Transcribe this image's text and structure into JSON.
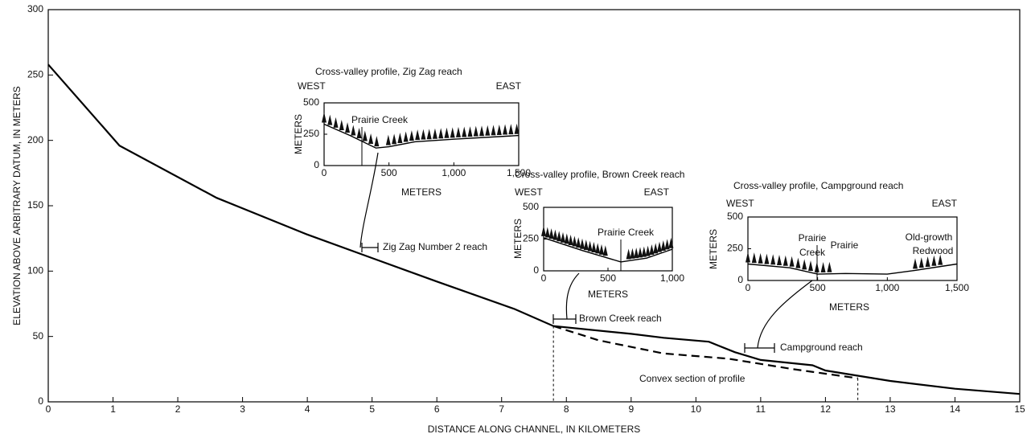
{
  "chart_data": [
    {
      "type": "line",
      "xlabel": "DISTANCE ALONG CHANNEL, IN KILOMETERS",
      "ylabel": "ELEVATION ABOVE ARBITRARY DATUM, IN METERS",
      "xlim": [
        0,
        15
      ],
      "xticks": [
        0,
        1,
        2,
        3,
        4,
        5,
        6,
        7,
        8,
        9,
        10,
        11,
        12,
        13,
        14,
        15
      ],
      "ylim": [
        0,
        300
      ],
      "yticks": [
        0,
        50,
        100,
        150,
        200,
        250,
        300
      ],
      "series": [
        {
          "color": "#000000",
          "line_style": "solid",
          "x": [
            0,
            1.1,
            2.6,
            4,
            5,
            6,
            7.2,
            7.8,
            9,
            9.5,
            10.2,
            10.6,
            11,
            11.8,
            12,
            13,
            14,
            15
          ],
          "values": [
            258,
            196,
            156,
            128,
            110,
            92,
            71,
            58,
            52,
            49,
            46,
            38,
            32,
            28,
            24,
            16,
            10,
            6
          ]
        },
        {
          "color": "#000000",
          "line_style": "dashed",
          "x": [
            7.8,
            8.5,
            9.5,
            10.5,
            11.5,
            12.5
          ],
          "values": [
            58,
            47,
            37,
            33,
            25,
            18
          ]
        }
      ],
      "annotations": [
        "Zig Zag Number 2 reach",
        "Brown Creek reach",
        "Campground reach",
        "Convex section of profile"
      ]
    },
    {
      "type": "line",
      "title": "Cross-valley profile, Zig Zag reach",
      "west": "WEST",
      "east": "EAST",
      "xlabel": "METERS",
      "ylabel": "METERS",
      "xlim": [
        0,
        1500
      ],
      "xticks": [
        0,
        500,
        {
          "value": 1000,
          "label": "1,000"
        },
        {
          "value": 1500,
          "label": "1,500"
        }
      ],
      "ylim": [
        0,
        500
      ],
      "yticks": [
        0,
        250,
        500
      ],
      "series": [
        {
          "color": "#000000",
          "x": [
            0,
            200,
            400,
            500,
            700,
            1000,
            1500
          ],
          "values": [
            330,
            240,
            140,
            150,
            190,
            210,
            240
          ]
        }
      ],
      "labels": [
        "Prairie Creek"
      ]
    },
    {
      "type": "line",
      "title": "Cross-valley profile, Brown Creek reach",
      "west": "WEST",
      "east": "EAST",
      "xlabel": "METERS",
      "ylabel": "METERS",
      "xlim": [
        0,
        1000
      ],
      "xticks": [
        0,
        500,
        {
          "value": 1000,
          "label": "1,000"
        }
      ],
      "ylim": [
        0,
        500
      ],
      "yticks": [
        0,
        250,
        500
      ],
      "series": [
        {
          "color": "#000000",
          "x": [
            0,
            300,
            600,
            800,
            1000
          ],
          "values": [
            260,
            160,
            70,
            100,
            170
          ]
        }
      ],
      "labels": [
        "Prairie Creek"
      ]
    },
    {
      "type": "line",
      "title": "Cross-valley profile, Campground reach",
      "west": "WEST",
      "east": "EAST",
      "xlabel": "METERS",
      "ylabel": "METERS",
      "xlim": [
        0,
        1500
      ],
      "xticks": [
        0,
        500,
        {
          "value": 1000,
          "label": "1,000"
        },
        {
          "value": 1500,
          "label": "1,500"
        }
      ],
      "ylim": [
        0,
        500
      ],
      "yticks": [
        0,
        250,
        500
      ],
      "series": [
        {
          "color": "#000000",
          "x": [
            0,
            300,
            500,
            700,
            1000,
            1200,
            1500
          ],
          "values": [
            130,
            100,
            50,
            55,
            50,
            80,
            130
          ]
        }
      ],
      "labels": [
        "Prairie",
        "Creek",
        "Prairie",
        "Old-growth",
        "Redwood"
      ]
    }
  ]
}
